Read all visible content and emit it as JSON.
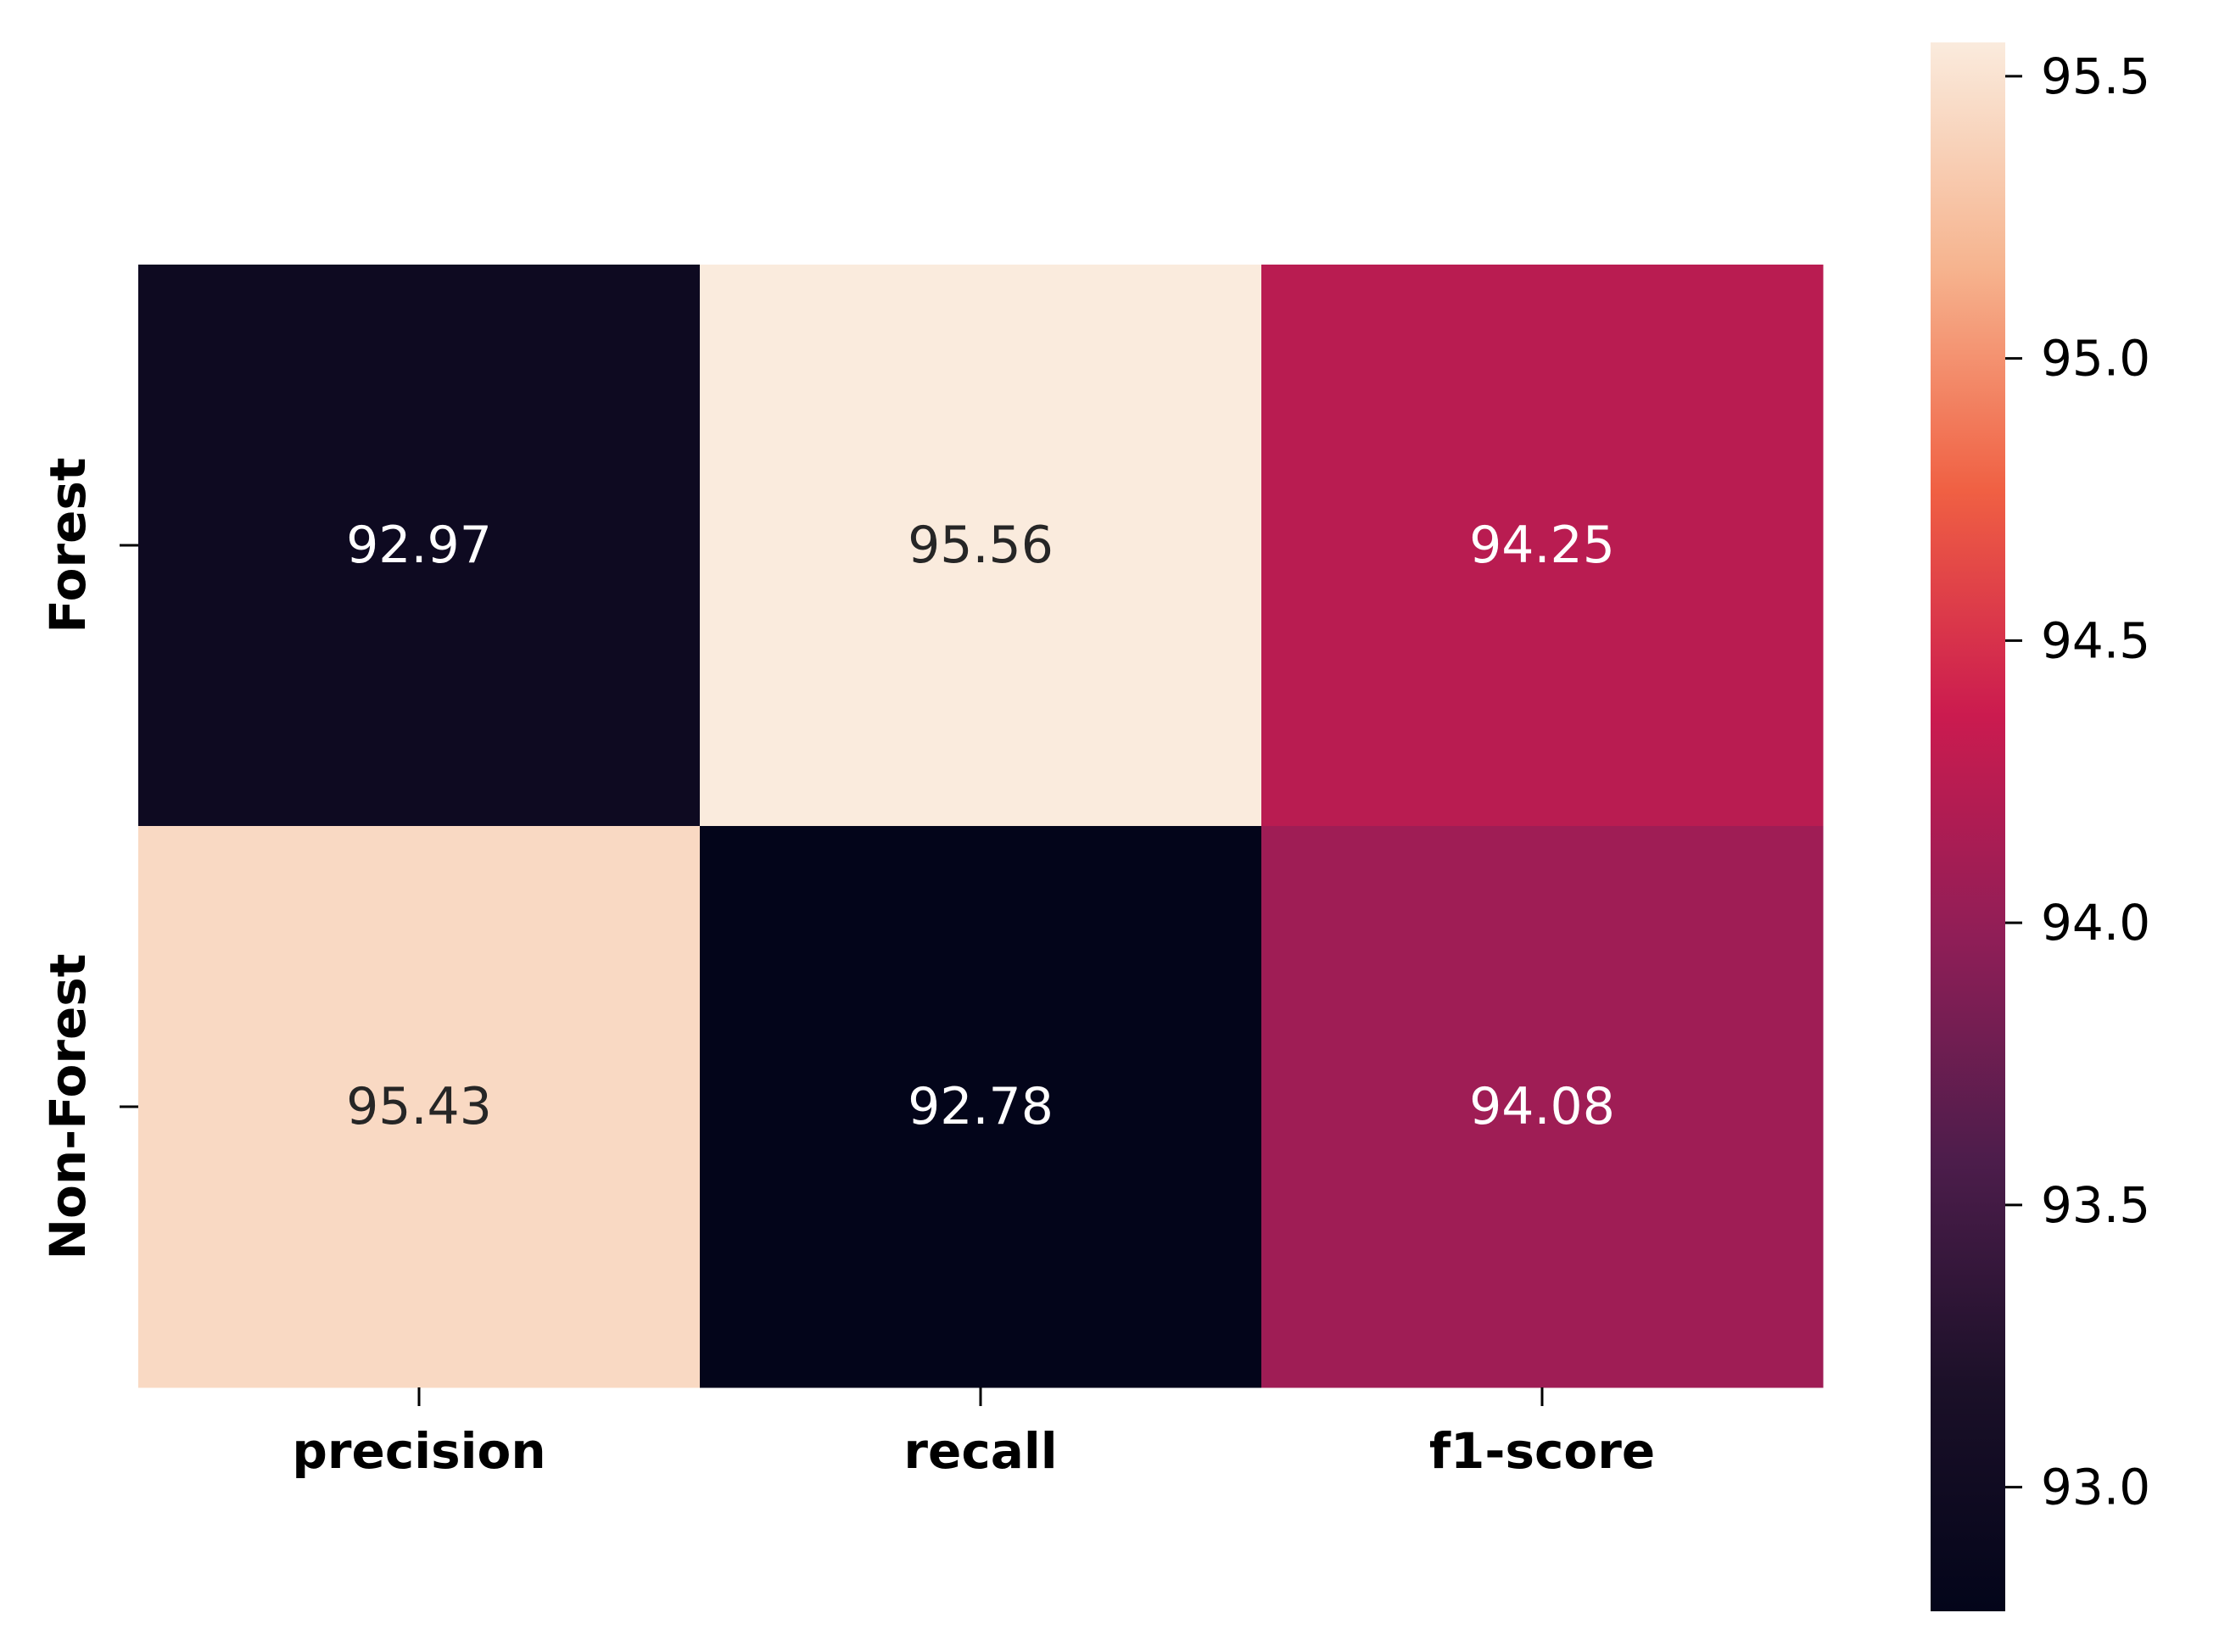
{
  "chart_data": {
    "type": "heatmap",
    "title": "",
    "xlabel": "",
    "ylabel": "",
    "x_categories": [
      "precision",
      "recall",
      "f1-score"
    ],
    "y_categories": [
      "Forest",
      "Non-Forest"
    ],
    "values": [
      [
        92.97,
        95.56,
        94.25
      ],
      [
        95.43,
        92.78,
        94.08
      ]
    ],
    "value_labels": [
      [
        "92.97",
        "95.56",
        "94.25"
      ],
      [
        "95.43",
        "92.78",
        "94.08"
      ]
    ],
    "colorbar": {
      "range": [
        92.78,
        95.56
      ],
      "ticks": [
        93.0,
        93.5,
        94.0,
        94.5,
        95.0,
        95.5
      ],
      "tick_labels": [
        "93.0",
        "93.5",
        "94.0",
        "94.5",
        "95.0",
        "95.5"
      ],
      "colormap": "rocket",
      "position": "right"
    },
    "colormap_stops": [
      "#03051a",
      "#1b1028",
      "#4c1d4b",
      "#8f1e57",
      "#cb1b4f",
      "#f06043",
      "#f6b48f",
      "#faebdd"
    ],
    "text_colors": {
      "on_dark": "#ffffff",
      "on_light": "#262626"
    }
  }
}
